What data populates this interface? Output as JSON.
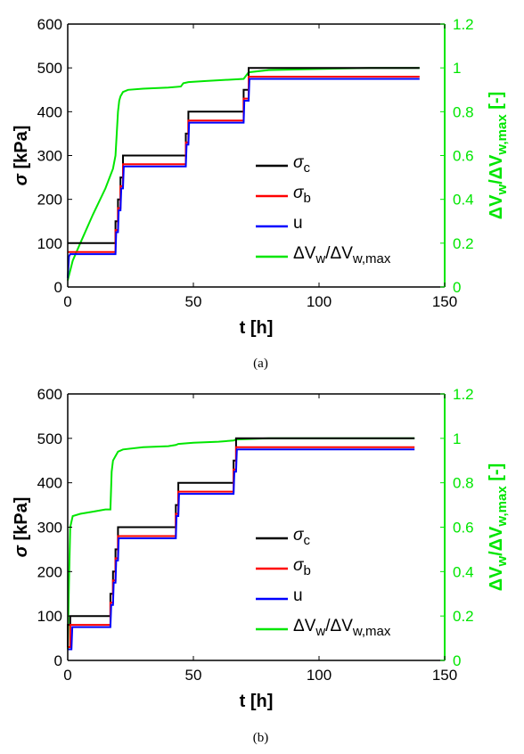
{
  "chart_data": [
    {
      "type": "line",
      "caption": "(a)",
      "xlabel": "t [h]",
      "ylabel": "σ [kPa]",
      "ylabel_right": "ΔVw/ΔVw,max [-]",
      "xlim": [
        0,
        150
      ],
      "ylim": [
        0,
        600
      ],
      "ylim_right": [
        0,
        1.2
      ],
      "xticks": [
        "0",
        "50",
        "100",
        "150"
      ],
      "yticks": [
        "0",
        "100",
        "200",
        "300",
        "400",
        "500",
        "600"
      ],
      "yticks_right": [
        "0",
        "0.2",
        "0.4",
        "0.6",
        "0.8",
        "1",
        "1.2"
      ],
      "legend_position": "lower-right",
      "legend": [
        {
          "label": "σc",
          "color": "#000000"
        },
        {
          "label": "σb",
          "color": "#ff0000"
        },
        {
          "label": "u",
          "color": "#0000ff"
        },
        {
          "label": "ΔVw/ΔVw,max",
          "color": "#00e600"
        }
      ],
      "series": [
        {
          "name": "σc",
          "axis": "left",
          "color": "#000000",
          "x": [
            0,
            19,
            19,
            20,
            20,
            21,
            21,
            22,
            22,
            47,
            47,
            48,
            48,
            70,
            70,
            72,
            72,
            140
          ],
          "y": [
            100,
            100,
            150,
            150,
            200,
            200,
            250,
            250,
            300,
            300,
            350,
            350,
            400,
            400,
            450,
            450,
            500,
            500
          ]
        },
        {
          "name": "σb",
          "axis": "left",
          "color": "#ff0000",
          "x": [
            0,
            19,
            19,
            20,
            20,
            21,
            21,
            22,
            22,
            47,
            47,
            48,
            48,
            70,
            70,
            72,
            72,
            140
          ],
          "y": [
            80,
            80,
            130,
            130,
            180,
            180,
            230,
            230,
            280,
            280,
            330,
            330,
            380,
            380,
            430,
            430,
            480,
            480
          ]
        },
        {
          "name": "u",
          "axis": "left",
          "color": "#0000ff",
          "x": [
            0,
            0.5,
            1,
            19,
            19.3,
            20,
            20.3,
            21,
            21.3,
            22,
            22.3,
            47,
            47.3,
            48,
            48.3,
            70,
            70.3,
            72,
            72.3,
            140
          ],
          "y": [
            20,
            70,
            75,
            75,
            125,
            125,
            175,
            175,
            225,
            225,
            275,
            275,
            325,
            325,
            375,
            375,
            425,
            425,
            475,
            475
          ]
        },
        {
          "name": "ΔVw/ΔVw,max",
          "axis": "right",
          "color": "#00e600",
          "x": [
            0,
            2,
            5,
            10,
            15,
            18,
            19,
            19.5,
            20,
            20.5,
            21,
            22,
            24,
            30,
            40,
            45,
            46,
            48,
            55,
            70,
            72,
            80,
            100,
            120,
            140
          ],
          "y": [
            0.03,
            0.12,
            0.2,
            0.33,
            0.45,
            0.54,
            0.6,
            0.7,
            0.8,
            0.85,
            0.87,
            0.89,
            0.9,
            0.905,
            0.91,
            0.915,
            0.93,
            0.935,
            0.94,
            0.95,
            0.98,
            0.99,
            0.995,
            1.0,
            1.0
          ]
        }
      ]
    },
    {
      "type": "line",
      "caption": "(b)",
      "xlabel": "t [h]",
      "ylabel": "σ [kPa]",
      "ylabel_right": "ΔVw/ΔVw,max [-]",
      "xlim": [
        0,
        150
      ],
      "ylim": [
        0,
        600
      ],
      "ylim_right": [
        0,
        1.2
      ],
      "xticks": [
        "0",
        "50",
        "100",
        "150"
      ],
      "yticks": [
        "0",
        "100",
        "200",
        "300",
        "400",
        "500",
        "600"
      ],
      "yticks_right": [
        "0",
        "0.2",
        "0.4",
        "0.6",
        "0.8",
        "1",
        "1.2"
      ],
      "legend_position": "lower-right",
      "legend": [
        {
          "label": "σc",
          "color": "#000000"
        },
        {
          "label": "σb",
          "color": "#ff0000"
        },
        {
          "label": "u",
          "color": "#0000ff"
        },
        {
          "label": "ΔVw/ΔVw,max",
          "color": "#00e600"
        }
      ],
      "series": [
        {
          "name": "σc",
          "axis": "left",
          "color": "#000000",
          "x": [
            0,
            0,
            1,
            1,
            17,
            17,
            18,
            18,
            19,
            19,
            20,
            20,
            43,
            43,
            44,
            44,
            66,
            66,
            67,
            67,
            138
          ],
          "y": [
            30,
            80,
            80,
            100,
            100,
            150,
            150,
            200,
            200,
            250,
            250,
            300,
            300,
            350,
            350,
            400,
            400,
            450,
            450,
            500,
            500
          ]
        },
        {
          "name": "σb",
          "axis": "left",
          "color": "#ff0000",
          "x": [
            0,
            1,
            1,
            17,
            17,
            18,
            18,
            19,
            19,
            20,
            20,
            43,
            43,
            44,
            44,
            66,
            66,
            67,
            67,
            138
          ],
          "y": [
            30,
            30,
            80,
            80,
            130,
            130,
            180,
            180,
            230,
            230,
            280,
            280,
            330,
            330,
            380,
            380,
            430,
            430,
            480,
            480
          ]
        },
        {
          "name": "u",
          "axis": "left",
          "color": "#0000ff",
          "x": [
            0,
            1.5,
            1.8,
            17,
            17.3,
            18,
            18.3,
            19,
            19.3,
            20,
            20.3,
            43,
            43.3,
            44,
            44.3,
            66,
            66.3,
            67,
            67.3,
            138
          ],
          "y": [
            25,
            25,
            75,
            75,
            125,
            125,
            175,
            175,
            225,
            225,
            275,
            275,
            325,
            325,
            375,
            375,
            425,
            425,
            475,
            475
          ]
        },
        {
          "name": "ΔVw/ΔVw,max",
          "axis": "right",
          "color": "#00e600",
          "x": [
            0,
            0.5,
            1,
            2,
            5,
            10,
            15,
            17,
            17.5,
            18,
            19,
            20,
            22,
            30,
            40,
            43,
            44,
            50,
            60,
            66,
            67,
            80,
            100,
            120,
            138
          ],
          "y": [
            0.05,
            0.35,
            0.6,
            0.65,
            0.66,
            0.67,
            0.68,
            0.68,
            0.85,
            0.9,
            0.92,
            0.94,
            0.95,
            0.96,
            0.965,
            0.97,
            0.975,
            0.98,
            0.985,
            0.99,
            0.995,
            1.0,
            1.0,
            1.0,
            1.0
          ]
        }
      ]
    }
  ]
}
